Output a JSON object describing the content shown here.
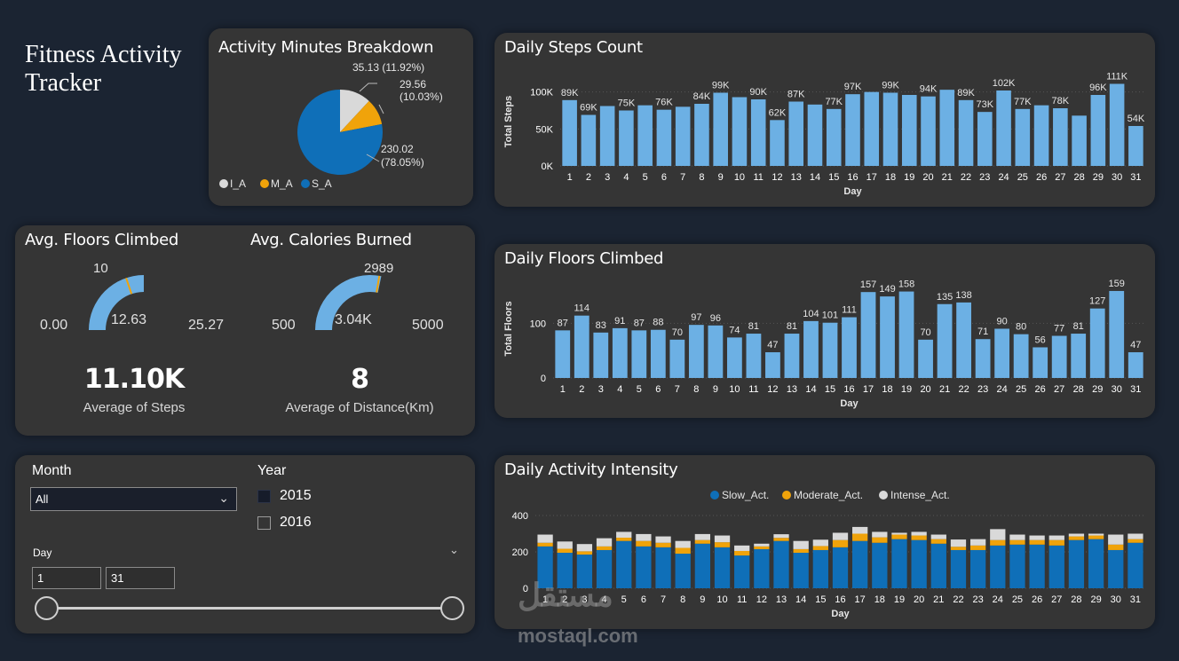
{
  "dashboard": {
    "title": "Fitness Activity Tracker"
  },
  "activity_minutes": {
    "title": "Activity Minutes Breakdown",
    "slices": [
      {
        "name": "I_A",
        "value": 35.13,
        "label": "35.13 (11.92%)",
        "color": "#d9d9d9"
      },
      {
        "name": "M_A",
        "value": 29.56,
        "label_line1": "29.56",
        "label_line2": "(10.03%)",
        "color": "#f0a30a"
      },
      {
        "name": "S_A",
        "value": 230.02,
        "label_line1": "230.02",
        "label_line2": "(78.05%)",
        "color": "#0f6fb8"
      }
    ],
    "legend": [
      "I_A",
      "M_A",
      "S_A"
    ]
  },
  "floors_gauge": {
    "title": "Avg. Floors Climbed",
    "min": "0.00",
    "max": "25.27",
    "value": "12.63",
    "target": "10",
    "value_num": 12.63,
    "min_num": 0,
    "max_num": 25.27,
    "target_num": 10
  },
  "calories_gauge": {
    "title": "Avg. Calories Burned",
    "min": "500",
    "max": "5000",
    "value": "3.04K",
    "target": "2989",
    "value_num": 3040,
    "min_num": 500,
    "max_num": 5000,
    "target_num": 2989
  },
  "kpis": {
    "steps_value": "11.10K",
    "steps_label": "Average of Steps",
    "distance_value": "8",
    "distance_label": "Average of Distance(Km)"
  },
  "slicers": {
    "month_label": "Month",
    "month_value": "All",
    "year_label": "Year",
    "year_options": [
      "2015",
      "2016"
    ],
    "year_checked": [
      true,
      false
    ],
    "day_label": "Day",
    "day_from": "1",
    "day_to": "31"
  },
  "watermark": {
    "arabic": "مستقل",
    "latin": "mostaql.com"
  },
  "chart_data": [
    {
      "id": "steps",
      "type": "bar",
      "title": "Daily Steps Count",
      "xlabel": "Day",
      "ylabel": "Total Steps",
      "yticks": [
        "0K",
        "50K",
        "100K"
      ],
      "ylim": [
        0,
        120000
      ],
      "categories": [
        "1",
        "2",
        "3",
        "4",
        "5",
        "6",
        "7",
        "8",
        "9",
        "10",
        "11",
        "12",
        "13",
        "14",
        "15",
        "16",
        "17",
        "18",
        "19",
        "20",
        "21",
        "22",
        "23",
        "24",
        "25",
        "26",
        "27",
        "28",
        "29",
        "30",
        "31"
      ],
      "values": [
        89000,
        69000,
        81000,
        75000,
        82000,
        76000,
        80000,
        84000,
        99000,
        93000,
        90000,
        62000,
        87000,
        83000,
        77000,
        97000,
        100000,
        99000,
        96000,
        94000,
        103000,
        89000,
        73000,
        102000,
        77000,
        82000,
        78000,
        68000,
        96000,
        111000,
        54000
      ],
      "labels": [
        "89K",
        "69K",
        "",
        "75K",
        "",
        "76K",
        "",
        "84K",
        "99K",
        "",
        "90K",
        "62K",
        "87K",
        "",
        "77K",
        "97K",
        "",
        "99K",
        "",
        "94K",
        "",
        "89K",
        "73K",
        "102K",
        "77K",
        "",
        "78K",
        "",
        "96K",
        "111K",
        "54K"
      ],
      "color": "#6cb0e4"
    },
    {
      "id": "floors",
      "type": "bar",
      "title": "Daily Floors Climbed",
      "xlabel": "Day",
      "ylabel": "Total Floors",
      "yticks": [
        "0",
        "100"
      ],
      "ylim": [
        0,
        180
      ],
      "categories": [
        "1",
        "2",
        "3",
        "4",
        "5",
        "6",
        "7",
        "8",
        "9",
        "10",
        "11",
        "12",
        "13",
        "14",
        "15",
        "16",
        "17",
        "18",
        "19",
        "20",
        "21",
        "22",
        "23",
        "24",
        "25",
        "26",
        "27",
        "28",
        "29",
        "30",
        "31"
      ],
      "values": [
        87,
        114,
        83,
        91,
        87,
        88,
        70,
        97,
        96,
        74,
        81,
        47,
        81,
        104,
        101,
        111,
        157,
        149,
        158,
        70,
        135,
        138,
        71,
        90,
        80,
        56,
        77,
        81,
        127,
        159,
        47
      ],
      "labels": [
        "87",
        "114",
        "83",
        "91",
        "87",
        "88",
        "70",
        "97",
        "96",
        "74",
        "81",
        "47",
        "81",
        "104",
        "101",
        "111",
        "157",
        "149",
        "158",
        "70",
        "135",
        "138",
        "71",
        "90",
        "80",
        "56",
        "77",
        "81",
        "127",
        "159",
        "47"
      ],
      "color": "#6cb0e4"
    },
    {
      "id": "intensity",
      "type": "bar",
      "stacked": true,
      "title": "Daily Activity Intensity",
      "xlabel": "Day",
      "yticks": [
        "0",
        "200",
        "400"
      ],
      "ylim": [
        0,
        400
      ],
      "categories": [
        "1",
        "2",
        "3",
        "4",
        "5",
        "6",
        "7",
        "8",
        "9",
        "10",
        "11",
        "12",
        "13",
        "14",
        "15",
        "16",
        "17",
        "18",
        "19",
        "20",
        "21",
        "22",
        "23",
        "24",
        "25",
        "26",
        "27",
        "28",
        "29",
        "30",
        "31"
      ],
      "series": [
        {
          "name": "Slow_Act.",
          "color": "#0f6fb8",
          "values": [
            230,
            195,
            185,
            210,
            260,
            230,
            225,
            190,
            245,
            225,
            180,
            215,
            260,
            195,
            210,
            225,
            260,
            250,
            270,
            265,
            245,
            210,
            210,
            235,
            240,
            240,
            235,
            265,
            270,
            210,
            250
          ]
        },
        {
          "name": "Moderate_Act.",
          "color": "#f0a30a",
          "values": [
            20,
            22,
            18,
            20,
            18,
            30,
            25,
            32,
            20,
            28,
            25,
            15,
            17,
            20,
            22,
            40,
            40,
            30,
            25,
            25,
            25,
            18,
            25,
            30,
            25,
            25,
            30,
            20,
            20,
            30,
            20
          ]
        },
        {
          "name": "Intense_Act.",
          "color": "#d9d9d9",
          "values": [
            45,
            40,
            40,
            45,
            32,
            38,
            35,
            38,
            33,
            37,
            30,
            15,
            20,
            45,
            35,
            40,
            37,
            30,
            10,
            20,
            25,
            40,
            35,
            60,
            30,
            25,
            25,
            15,
            10,
            55,
            30
          ]
        }
      ]
    }
  ]
}
